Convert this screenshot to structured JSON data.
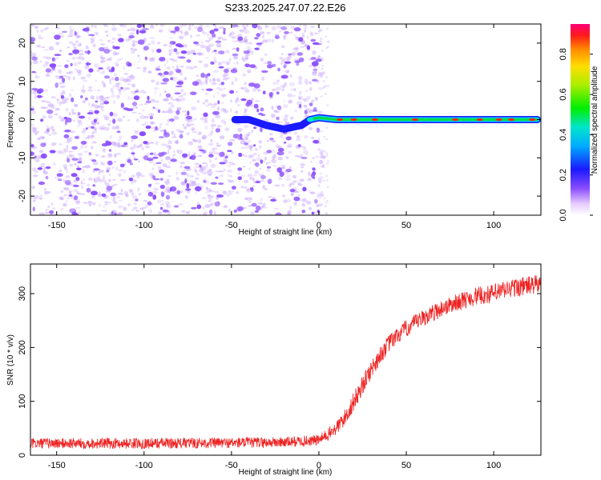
{
  "title": "S233.2025.247.07.22.E26",
  "colors": {
    "line": "#ee2222",
    "blob": "#8a4dff",
    "track_core": "#ff2200",
    "track_mid": "#00dd44",
    "track_edge": "#1a1aff",
    "frame": "#000000"
  },
  "chart_data": [
    {
      "type": "heatmap",
      "xlabel": "Height of straight line (km)",
      "ylabel": "Frequency (Hz)",
      "xlim": [
        -165,
        127
      ],
      "ylim": [
        -25,
        25
      ],
      "xticks": [
        -150,
        -100,
        -50,
        0,
        50,
        100
      ],
      "xtick_labels": [
        "-150",
        "-100",
        "-50",
        "0",
        "50",
        "100"
      ],
      "yticks": [
        -20,
        -10,
        0,
        10,
        20
      ],
      "ytick_labels": [
        "-20",
        "-10",
        "0",
        "10",
        "20"
      ],
      "noise_region_x": [
        -165,
        0
      ],
      "track": {
        "description": "narrow signal near 0 Hz",
        "points": [
          {
            "x": -48,
            "y": 0
          },
          {
            "x": -40,
            "y": 0
          },
          {
            "x": -30,
            "y": -1.5
          },
          {
            "x": -20,
            "y": -2.5
          },
          {
            "x": -10,
            "y": -1.5
          },
          {
            "x": -5,
            "y": 0
          },
          {
            "x": 0,
            "y": 0.5
          },
          {
            "x": 10,
            "y": 0
          },
          {
            "x": 50,
            "y": 0
          },
          {
            "x": 100,
            "y": 0
          },
          {
            "x": 125,
            "y": 0
          }
        ],
        "peaks_x": [
          12,
          20,
          32,
          55,
          78,
          92,
          103,
          110,
          122
        ]
      },
      "colorbar": {
        "label": "Normalized spectral amplitude",
        "range": [
          0.0,
          0.95
        ],
        "ticks": [
          0.0,
          0.2,
          0.4,
          0.6,
          0.8
        ],
        "tick_labels": [
          "0.0",
          "0.2",
          "0.4",
          "0.6",
          "0.8"
        ]
      }
    },
    {
      "type": "line",
      "xlabel": "Height of straight line (km)",
      "ylabel": "SNR (10 * v/v)",
      "xlim": [
        -165,
        127
      ],
      "ylim": [
        0,
        355
      ],
      "xticks": [
        -150,
        -100,
        -50,
        0,
        50,
        100
      ],
      "xtick_labels": [
        "-150",
        "-100",
        "-50",
        "0",
        "50",
        "100"
      ],
      "yticks": [
        0,
        100,
        200,
        300
      ],
      "ytick_labels": [
        "0",
        "100",
        "200",
        "300"
      ],
      "series": [
        {
          "name": "SNR",
          "x": [
            -165,
            -100,
            -50,
            -20,
            0,
            5,
            10,
            15,
            20,
            25,
            30,
            35,
            40,
            45,
            50,
            60,
            70,
            80,
            90,
            100,
            110,
            120,
            127
          ],
          "y": [
            22,
            22,
            23,
            24,
            28,
            38,
            50,
            70,
            100,
            130,
            160,
            185,
            207,
            222,
            235,
            255,
            272,
            285,
            295,
            300,
            310,
            315,
            318
          ],
          "noise_amplitude": [
            10,
            10,
            10,
            10,
            10,
            12,
            14,
            16,
            18,
            18,
            18,
            17,
            16,
            16,
            16,
            16,
            16,
            16,
            17,
            18,
            18,
            18,
            18
          ]
        }
      ]
    }
  ]
}
